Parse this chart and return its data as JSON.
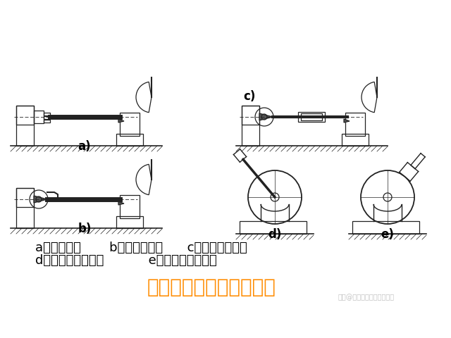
{
  "bg_color": "#ffffff",
  "title_text": "用分度头装夹工件的方法",
  "title_color": "#FF8C00",
  "title_fontsize": 20,
  "label_line1": "a）一夹一顶       b）双顶尖装夹      c）心轴两顶装夹",
  "label_line2": "d）心轴分度头装夹           e）卡盘分度头装夹",
  "label_fontsize": 13,
  "watermark": "头条@专注炮塔铣床数控铣床",
  "watermark_fontsize": 7,
  "watermark_color": "#aaaaaa",
  "diagram_line_color": "#222222",
  "sub_label_fontsize": 12
}
